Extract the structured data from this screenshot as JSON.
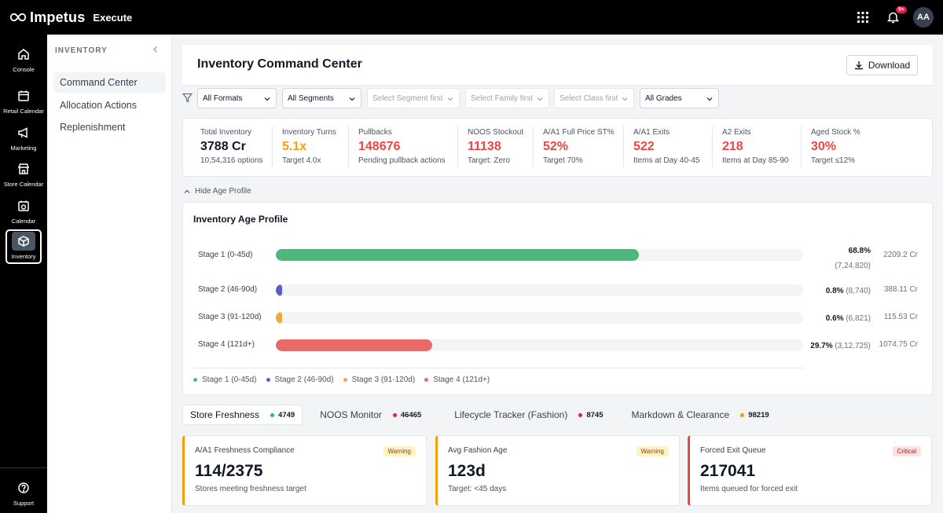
{
  "app": {
    "brand": "Impetus",
    "module": "Execute",
    "notif_badge": "9+",
    "avatar_initials": "AA"
  },
  "rail": {
    "items": [
      {
        "label": "Console",
        "icon": "home-icon"
      },
      {
        "label": "Retail Calendar",
        "icon": "calendar-icon"
      },
      {
        "label": "Marketing",
        "icon": "megaphone-icon"
      },
      {
        "label": "Store Calendar",
        "icon": "store-icon"
      },
      {
        "label": "Calendar",
        "icon": "calendar-clock-icon"
      },
      {
        "label": "Inventory",
        "icon": "box-icon",
        "active": true
      }
    ],
    "support_label": "Support"
  },
  "subnav": {
    "heading": "INVENTORY",
    "items": [
      {
        "label": "Command Center",
        "active": true
      },
      {
        "label": "Allocation Actions"
      },
      {
        "label": "Replenishment"
      }
    ]
  },
  "header": {
    "title": "Inventory Command Center",
    "download_label": "Download"
  },
  "filters": [
    {
      "value": "All Formats",
      "enabled": true
    },
    {
      "value": "All Segments",
      "enabled": true
    },
    {
      "value": "Select Segment first",
      "enabled": false
    },
    {
      "value": "Select Family first",
      "enabled": false
    },
    {
      "value": "Select Class first",
      "enabled": false
    },
    {
      "value": "All Grades",
      "enabled": true
    }
  ],
  "kpis": [
    {
      "label": "Total Inventory",
      "value": "3788 Cr",
      "sub": "10,54,316 options",
      "color": "#111827"
    },
    {
      "label": "Inventory Turns",
      "value": "5.1x",
      "sub": "Target 4.0x",
      "color": "#f59e0b"
    },
    {
      "label": "Pullbacks",
      "value": "148676",
      "sub": "Pending pullback actions",
      "color": "#ef4444"
    },
    {
      "label": "NOOS Stockout",
      "value": "11138",
      "sub": "Target: Zero",
      "color": "#ef4444"
    },
    {
      "label": "A/A1 Full Price ST%",
      "value": "52%",
      "sub": "Target 70%",
      "color": "#ef4444"
    },
    {
      "label": "A/A1 Exits",
      "value": "522",
      "sub": "Items at Day 40-45",
      "color": "#ef4444"
    },
    {
      "label": "A2 Exits",
      "value": "218",
      "sub": "Items at Day 85-90",
      "color": "#ef4444"
    },
    {
      "label": "Aged Stock %",
      "value": "30%",
      "sub": "Target ≤12%",
      "color": "#ef4444"
    }
  ],
  "age_profile": {
    "toggle_label": "Hide Age Profile",
    "title": "Inventory Age Profile",
    "stages": [
      {
        "label": "Stage 1 (0-45d)",
        "pct": "68.8%",
        "count": "(7,24,820)",
        "value_cr": "2209.2 Cr",
        "fill": 0.688,
        "color": "#4cb87c"
      },
      {
        "label": "Stage 2 (46-90d)",
        "pct": "0.8%",
        "count": "(8,740)",
        "value_cr": "388.11 Cr",
        "fill": 0.008,
        "color": "#5b5bd6"
      },
      {
        "label": "Stage 3 (91-120d)",
        "pct": "0.6%",
        "count": "(6,821)",
        "value_cr": "115.53 Cr",
        "fill": 0.006,
        "color": "#f0a93b"
      },
      {
        "label": "Stage 4 (121d+)",
        "pct": "29.7%",
        "count": "(3,12,725)",
        "value_cr": "1074.75 Cr",
        "fill": 0.297,
        "color": "#ea6a6a"
      }
    ]
  },
  "tabs": [
    {
      "label": "Store Freshness",
      "count": "4749",
      "dot": "#22c55e",
      "active": true
    },
    {
      "label": "NOOS Monitor",
      "count": "46465",
      "dot": "#e11d48"
    },
    {
      "label": "Lifecycle Tracker (Fashion)",
      "count": "8745",
      "dot": "#e11d48"
    },
    {
      "label": "Markdown & Clearance",
      "count": "98219",
      "dot": "#f59e0b"
    }
  ],
  "cards": [
    {
      "label": "A/A1 Freshness Compliance",
      "badge": "Warning",
      "value": "114/2375",
      "sub": "Stores meeting freshness target"
    },
    {
      "label": "Avg Fashion Age",
      "badge": "Warning",
      "value": "123d",
      "sub": "Target: <45 days"
    },
    {
      "label": "Forced Exit Queue",
      "badge": "Critical",
      "value": "217041",
      "sub": "Items queued for forced exit"
    }
  ]
}
